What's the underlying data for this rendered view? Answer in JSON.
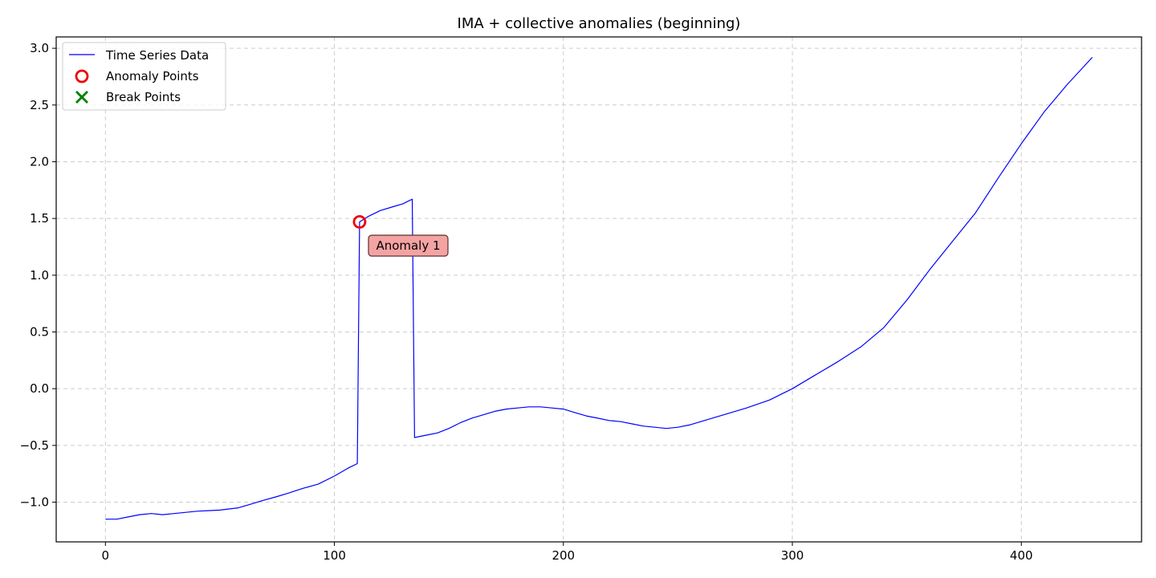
{
  "chart_data": {
    "type": "line",
    "title": "IMA + collective anomalies (beginning)",
    "xlabel": "",
    "ylabel": "",
    "xlim": [
      -21.5,
      452.5
    ],
    "ylim": [
      -1.35,
      3.1
    ],
    "x_ticks": [
      0,
      100,
      200,
      300,
      400
    ],
    "y_ticks": [
      -1.0,
      -0.5,
      0.0,
      0.5,
      1.0,
      1.5,
      2.0,
      2.5,
      3.0
    ],
    "x_tick_labels": [
      "0",
      "100",
      "200",
      "300",
      "400"
    ],
    "y_tick_labels": [
      "−1.0",
      "−0.5",
      "0.0",
      "0.5",
      "1.0",
      "1.5",
      "2.0",
      "2.5",
      "3.0"
    ],
    "grid": true,
    "legend_position": "top-left",
    "series": [
      {
        "name": "Time Series Data",
        "color": "#0000ff",
        "x": [
          0,
          5,
          10,
          15,
          20,
          25,
          30,
          40,
          50,
          58,
          63,
          68,
          75,
          80,
          86,
          93,
          100,
          106,
          110,
          111,
          115,
          120,
          125,
          130,
          134,
          135,
          140,
          145,
          150,
          155,
          160,
          165,
          170,
          175,
          180,
          185,
          190,
          195,
          200,
          205,
          210,
          215,
          220,
          225,
          230,
          235,
          240,
          245,
          250,
          255,
          260,
          265,
          270,
          280,
          290,
          300,
          310,
          320,
          330,
          340,
          350,
          360,
          370,
          380,
          390,
          400,
          410,
          420,
          431
        ],
        "y": [
          -1.15,
          -1.15,
          -1.13,
          -1.11,
          -1.1,
          -1.11,
          -1.1,
          -1.08,
          -1.07,
          -1.05,
          -1.02,
          -0.99,
          -0.95,
          -0.92,
          -0.88,
          -0.84,
          -0.77,
          -0.7,
          -0.66,
          1.47,
          1.52,
          1.57,
          1.6,
          1.63,
          1.67,
          -0.43,
          -0.41,
          -0.39,
          -0.35,
          -0.3,
          -0.26,
          -0.23,
          -0.2,
          -0.18,
          -0.17,
          -0.16,
          -0.16,
          -0.17,
          -0.18,
          -0.21,
          -0.24,
          -0.26,
          -0.28,
          -0.29,
          -0.31,
          -0.33,
          -0.34,
          -0.35,
          -0.34,
          -0.32,
          -0.29,
          -0.26,
          -0.23,
          -0.17,
          -0.1,
          0.0,
          0.12,
          0.24,
          0.37,
          0.54,
          0.78,
          1.05,
          1.3,
          1.55,
          1.86,
          2.16,
          2.44,
          2.68,
          2.92
        ]
      }
    ],
    "anomaly_points": [
      {
        "name": "Anomaly Points",
        "x": 111,
        "y": 1.47,
        "color": "#ee0000"
      }
    ],
    "break_points": {
      "name": "Break Points",
      "color": "#008000",
      "x": [],
      "y": []
    },
    "annotations": [
      {
        "text": "Anomaly 1",
        "x": 111,
        "y": 1.47,
        "box_color": "#f4a3a3"
      }
    ]
  }
}
